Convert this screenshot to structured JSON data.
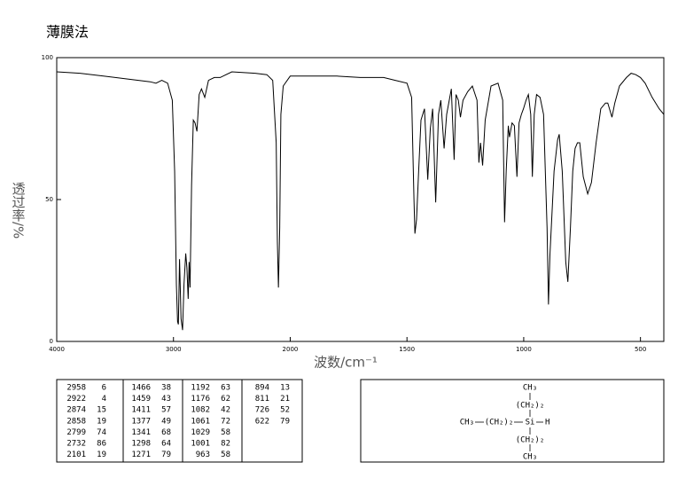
{
  "chart_data": {
    "type": "line",
    "title": "薄膜法",
    "xlabel": "波数/cm⁻¹",
    "ylabel": "透过率/%",
    "xlim": [
      4000,
      400
    ],
    "ylim": [
      0,
      100
    ],
    "x_scale_break": 2000,
    "xticks": [
      4000,
      3000,
      2000,
      1500,
      1000,
      500
    ],
    "yticks": [
      0,
      50,
      100
    ],
    "x": [
      4000,
      3800,
      3600,
      3400,
      3200,
      3150,
      3100,
      3050,
      3010,
      2990,
      2975,
      2965,
      2958,
      2948,
      2935,
      2922,
      2910,
      2895,
      2885,
      2874,
      2866,
      2858,
      2845,
      2830,
      2815,
      2799,
      2780,
      2760,
      2732,
      2700,
      2650,
      2600,
      2500,
      2300,
      2200,
      2150,
      2120,
      2110,
      2101,
      2090,
      2080,
      2060,
      2000,
      1800,
      1700,
      1600,
      1550,
      1500,
      1480,
      1470,
      1466,
      1459,
      1450,
      1440,
      1425,
      1411,
      1400,
      1390,
      1377,
      1365,
      1355,
      1341,
      1330,
      1310,
      1298,
      1290,
      1280,
      1271,
      1260,
      1240,
      1220,
      1200,
      1192,
      1185,
      1176,
      1165,
      1140,
      1110,
      1090,
      1082,
      1075,
      1066,
      1061,
      1050,
      1040,
      1029,
      1020,
      1010,
      1001,
      990,
      980,
      970,
      963,
      955,
      945,
      930,
      915,
      900,
      894,
      888,
      870,
      855,
      848,
      835,
      820,
      811,
      800,
      790,
      780,
      770,
      760,
      745,
      726,
      710,
      690,
      670,
      650,
      640,
      622,
      610,
      590,
      560,
      540,
      520,
      500,
      480,
      450,
      420,
      400
    ],
    "series": [
      {
        "color": "#000000",
        "values": [
          95,
          94.5,
          93.5,
          92.5,
          91.5,
          91,
          92,
          91,
          85,
          60,
          20,
          7,
          6,
          29,
          8,
          4,
          20,
          31,
          26,
          15,
          28,
          19,
          55,
          78,
          77,
          74,
          87,
          89,
          86,
          92,
          93,
          93,
          95,
          94.5,
          94,
          92,
          70,
          35,
          19,
          40,
          80,
          90,
          93.5,
          93.5,
          93,
          93,
          92,
          91,
          86,
          50,
          38,
          43,
          60,
          78,
          82,
          57,
          75,
          82,
          49,
          80,
          85,
          68,
          80,
          89,
          64,
          87,
          85,
          79,
          85,
          88,
          90,
          85,
          63,
          70,
          62,
          78,
          90,
          91,
          85,
          42,
          60,
          76,
          72,
          77,
          76,
          58,
          77,
          80,
          82,
          85,
          87,
          80,
          58,
          80,
          87,
          86,
          80,
          40,
          13,
          30,
          60,
          71,
          73,
          60,
          28,
          21,
          40,
          60,
          68,
          70,
          70,
          58,
          52,
          56,
          70,
          82,
          84,
          84,
          79,
          84,
          90,
          93,
          94.5,
          94,
          93,
          91,
          86,
          82,
          80
        ]
      }
    ]
  },
  "peak_table": {
    "groups": [
      [
        [
          2958,
          6
        ],
        [
          2922,
          4
        ],
        [
          2874,
          15
        ],
        [
          2858,
          19
        ],
        [
          2799,
          74
        ],
        [
          2732,
          86
        ],
        [
          2101,
          19
        ]
      ],
      [
        [
          1466,
          38
        ],
        [
          1459,
          43
        ],
        [
          1411,
          57
        ],
        [
          1377,
          49
        ],
        [
          1341,
          68
        ],
        [
          1298,
          64
        ],
        [
          1271,
          79
        ]
      ],
      [
        [
          1192,
          63
        ],
        [
          1176,
          62
        ],
        [
          1082,
          42
        ],
        [
          1061,
          72
        ],
        [
          1029,
          58
        ],
        [
          1001,
          82
        ],
        [
          963,
          58
        ]
      ],
      [
        [
          894,
          13
        ],
        [
          811,
          21
        ],
        [
          726,
          52
        ],
        [
          622,
          79
        ]
      ]
    ]
  },
  "structure": {
    "top_methyl": "CH₃",
    "top_chain": "(CH₂)₂",
    "left_methyl": "CH₃",
    "left_chain": "(CH₂)₂",
    "silicon": "Si",
    "hydrogen": "H",
    "bottom_chain": "(CH₂)₂",
    "bottom_methyl": "CH₃"
  }
}
